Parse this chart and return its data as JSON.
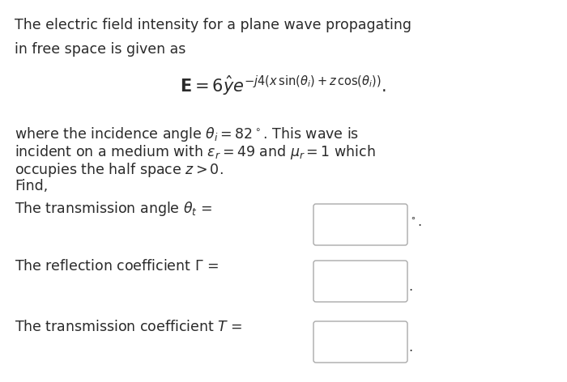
{
  "bg_color": "#ffffff",
  "text_color": "#2a2a2a",
  "line1": "The electric field intensity for a plane wave propagating",
  "line2": "in free space is given as",
  "equation": "$\\mathbf{E} = 6\\hat{y}e^{-j4(x\\,\\sin(\\theta_i)+z\\,\\cos(\\theta_i))}.$",
  "para1_line1": "where the incidence angle $\\theta_i = 82^\\circ$. This wave is",
  "para1_line2": "incident on a medium with $\\epsilon_r = 49$ and $\\mu_r = 1$ which",
  "para1_line3": "occupies the half space $z > 0$.",
  "para1_line4": "Find,",
  "label1": "The transmission angle $\\theta_t$ =",
  "suffix1": "$^\\circ$.",
  "label2": "The reflection coefficient $\\Gamma$ =",
  "suffix2": ".",
  "label3": "The transmission coefficient $T$ =",
  "suffix3": ".",
  "font_size_text": 12.5,
  "font_size_eq": 13.5
}
